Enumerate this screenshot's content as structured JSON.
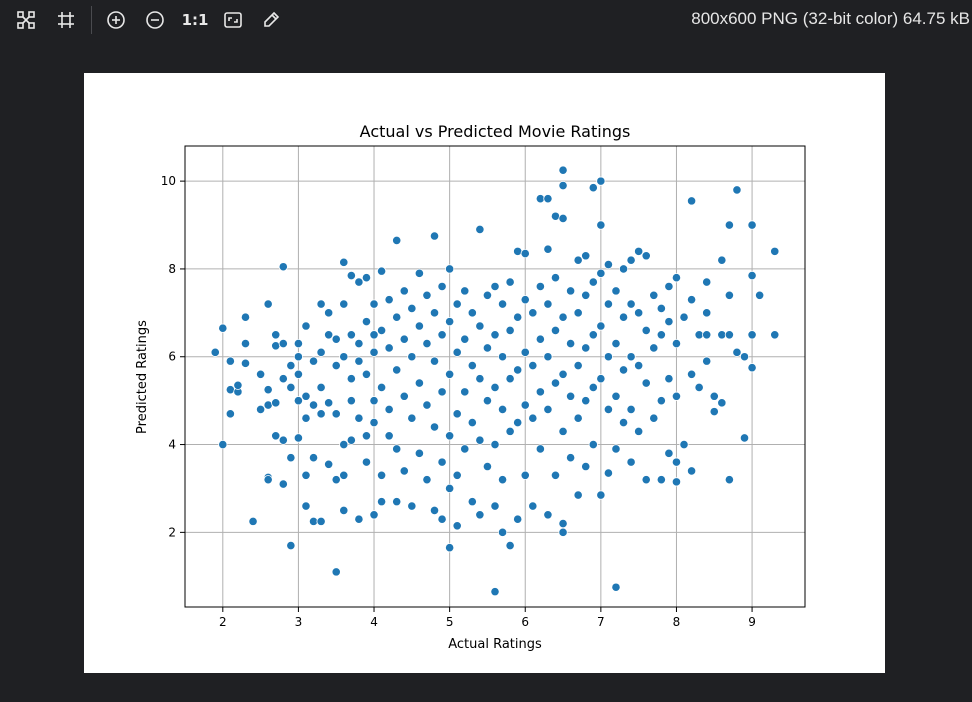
{
  "toolbar": {
    "tools": [
      {
        "name": "fit-icon"
      },
      {
        "name": "crop-grid-icon"
      },
      {
        "name": "zoom-in-icon"
      },
      {
        "name": "zoom-out-icon"
      },
      {
        "name": "actual-size",
        "label": "1:1"
      },
      {
        "name": "fit-window-icon"
      },
      {
        "name": "color-picker-icon"
      }
    ],
    "file_info": "800x600 PNG (32-bit color) 64.75 kB"
  },
  "colors": {
    "background": "#1f2023",
    "point": "#1f77b4",
    "grid": "#b0b0b0"
  },
  "chart_data": {
    "type": "scatter",
    "title": "Actual vs Predicted Movie Ratings",
    "xlabel": "Actual Ratings",
    "ylabel": "Predicted Ratings",
    "xlim": [
      1.5,
      9.7
    ],
    "ylim": [
      0.3,
      10.8
    ],
    "xticks": [
      2,
      3,
      4,
      5,
      6,
      7,
      8,
      9
    ],
    "yticks": [
      2,
      4,
      6,
      8,
      10
    ],
    "grid": true,
    "series": [
      {
        "name": "",
        "points": [
          [
            1.9,
            6.1
          ],
          [
            2.0,
            6.65
          ],
          [
            2.0,
            4.0
          ],
          [
            2.1,
            4.7
          ],
          [
            2.1,
            5.9
          ],
          [
            2.1,
            5.25
          ],
          [
            2.2,
            5.2
          ],
          [
            2.2,
            5.35
          ],
          [
            2.3,
            6.3
          ],
          [
            2.3,
            6.9
          ],
          [
            2.3,
            5.85
          ],
          [
            2.4,
            2.25
          ],
          [
            2.5,
            5.6
          ],
          [
            2.5,
            4.8
          ],
          [
            2.6,
            4.9
          ],
          [
            2.6,
            3.25
          ],
          [
            2.6,
            3.2
          ],
          [
            2.6,
            5.25
          ],
          [
            2.6,
            7.2
          ],
          [
            2.7,
            6.5
          ],
          [
            2.7,
            4.95
          ],
          [
            2.7,
            4.2
          ],
          [
            2.7,
            6.25
          ],
          [
            2.8,
            8.05
          ],
          [
            2.8,
            6.3
          ],
          [
            2.8,
            5.5
          ],
          [
            2.8,
            3.1
          ],
          [
            2.8,
            4.1
          ],
          [
            2.9,
            5.8
          ],
          [
            2.9,
            5.3
          ],
          [
            2.9,
            1.7
          ],
          [
            2.9,
            3.7
          ],
          [
            3.0,
            6.0
          ],
          [
            3.0,
            4.15
          ],
          [
            3.0,
            5.0
          ],
          [
            3.0,
            6.3
          ],
          [
            3.0,
            5.6
          ],
          [
            3.1,
            6.7
          ],
          [
            3.1,
            5.1
          ],
          [
            3.1,
            2.6
          ],
          [
            3.1,
            3.3
          ],
          [
            3.1,
            4.6
          ],
          [
            3.2,
            2.25
          ],
          [
            3.2,
            5.9
          ],
          [
            3.2,
            4.9
          ],
          [
            3.2,
            3.7
          ],
          [
            3.3,
            7.2
          ],
          [
            3.3,
            6.1
          ],
          [
            3.3,
            4.7
          ],
          [
            3.3,
            2.25
          ],
          [
            3.3,
            5.3
          ],
          [
            3.4,
            6.5
          ],
          [
            3.4,
            3.55
          ],
          [
            3.4,
            7.0
          ],
          [
            3.4,
            4.95
          ],
          [
            3.5,
            1.1
          ],
          [
            3.5,
            6.4
          ],
          [
            3.5,
            4.7
          ],
          [
            3.5,
            3.2
          ],
          [
            3.5,
            5.8
          ],
          [
            3.6,
            8.15
          ],
          [
            3.6,
            7.2
          ],
          [
            3.6,
            6.0
          ],
          [
            3.6,
            4.0
          ],
          [
            3.6,
            3.3
          ],
          [
            3.6,
            2.5
          ],
          [
            3.7,
            7.85
          ],
          [
            3.7,
            6.5
          ],
          [
            3.7,
            5.0
          ],
          [
            3.7,
            4.1
          ],
          [
            3.7,
            5.5
          ],
          [
            3.8,
            7.7
          ],
          [
            3.8,
            6.3
          ],
          [
            3.8,
            2.3
          ],
          [
            3.8,
            4.6
          ],
          [
            3.8,
            5.9
          ],
          [
            3.9,
            7.8
          ],
          [
            3.9,
            6.8
          ],
          [
            3.9,
            5.6
          ],
          [
            3.9,
            4.2
          ],
          [
            3.9,
            3.6
          ],
          [
            4.0,
            7.2
          ],
          [
            4.0,
            6.1
          ],
          [
            4.0,
            4.5
          ],
          [
            4.0,
            2.4
          ],
          [
            4.0,
            5.0
          ],
          [
            4.0,
            6.5
          ],
          [
            4.1,
            7.95
          ],
          [
            4.1,
            6.6
          ],
          [
            4.1,
            5.3
          ],
          [
            4.1,
            3.3
          ],
          [
            4.1,
            2.7
          ],
          [
            4.2,
            7.3
          ],
          [
            4.2,
            6.2
          ],
          [
            4.2,
            4.8
          ],
          [
            4.2,
            4.2
          ],
          [
            4.3,
            8.65
          ],
          [
            4.3,
            6.9
          ],
          [
            4.3,
            5.7
          ],
          [
            4.3,
            3.9
          ],
          [
            4.3,
            2.7
          ],
          [
            4.4,
            7.5
          ],
          [
            4.4,
            6.4
          ],
          [
            4.4,
            5.1
          ],
          [
            4.4,
            3.4
          ],
          [
            4.5,
            7.1
          ],
          [
            4.5,
            6.0
          ],
          [
            4.5,
            4.6
          ],
          [
            4.5,
            2.6
          ],
          [
            4.6,
            7.9
          ],
          [
            4.6,
            6.7
          ],
          [
            4.6,
            5.4
          ],
          [
            4.6,
            3.8
          ],
          [
            4.7,
            7.4
          ],
          [
            4.7,
            6.3
          ],
          [
            4.7,
            4.9
          ],
          [
            4.7,
            3.2
          ],
          [
            4.8,
            8.75
          ],
          [
            4.8,
            7.0
          ],
          [
            4.8,
            5.9
          ],
          [
            4.8,
            4.4
          ],
          [
            4.8,
            2.5
          ],
          [
            4.9,
            7.6
          ],
          [
            4.9,
            6.5
          ],
          [
            4.9,
            5.2
          ],
          [
            4.9,
            3.6
          ],
          [
            4.9,
            2.3
          ],
          [
            5.0,
            8.0
          ],
          [
            5.0,
            6.8
          ],
          [
            5.0,
            5.6
          ],
          [
            5.0,
            4.2
          ],
          [
            5.0,
            1.65
          ],
          [
            5.0,
            3.0
          ],
          [
            5.1,
            7.2
          ],
          [
            5.1,
            6.1
          ],
          [
            5.1,
            4.7
          ],
          [
            5.1,
            3.3
          ],
          [
            5.1,
            2.15
          ],
          [
            5.2,
            7.5
          ],
          [
            5.2,
            6.4
          ],
          [
            5.2,
            5.2
          ],
          [
            5.2,
            3.9
          ],
          [
            5.3,
            7.0
          ],
          [
            5.3,
            5.8
          ],
          [
            5.3,
            4.5
          ],
          [
            5.3,
            2.7
          ],
          [
            5.4,
            8.9
          ],
          [
            5.4,
            6.7
          ],
          [
            5.4,
            5.5
          ],
          [
            5.4,
            4.1
          ],
          [
            5.4,
            2.4
          ],
          [
            5.5,
            7.4
          ],
          [
            5.5,
            6.2
          ],
          [
            5.5,
            5.0
          ],
          [
            5.5,
            3.5
          ],
          [
            5.6,
            0.65
          ],
          [
            5.6,
            7.6
          ],
          [
            5.6,
            6.5
          ],
          [
            5.6,
            5.3
          ],
          [
            5.6,
            4.0
          ],
          [
            5.6,
            2.6
          ],
          [
            5.7,
            7.2
          ],
          [
            5.7,
            6.0
          ],
          [
            5.7,
            4.8
          ],
          [
            5.7,
            3.2
          ],
          [
            5.7,
            2.0
          ],
          [
            5.8,
            7.7
          ],
          [
            5.8,
            6.6
          ],
          [
            5.8,
            5.5
          ],
          [
            5.8,
            4.3
          ],
          [
            5.8,
            1.7
          ],
          [
            5.9,
            8.4
          ],
          [
            5.9,
            6.9
          ],
          [
            5.9,
            5.7
          ],
          [
            5.9,
            4.5
          ],
          [
            5.9,
            2.3
          ],
          [
            6.0,
            8.35
          ],
          [
            6.0,
            7.3
          ],
          [
            6.0,
            6.1
          ],
          [
            6.0,
            4.9
          ],
          [
            6.0,
            3.3
          ],
          [
            6.1,
            7.0
          ],
          [
            6.1,
            5.8
          ],
          [
            6.1,
            4.6
          ],
          [
            6.1,
            2.6
          ],
          [
            6.2,
            9.6
          ],
          [
            6.2,
            7.6
          ],
          [
            6.2,
            6.4
          ],
          [
            6.2,
            5.2
          ],
          [
            6.2,
            3.9
          ],
          [
            6.3,
            9.6
          ],
          [
            6.3,
            8.45
          ],
          [
            6.3,
            7.2
          ],
          [
            6.3,
            6.0
          ],
          [
            6.3,
            4.8
          ],
          [
            6.3,
            2.4
          ],
          [
            6.4,
            9.2
          ],
          [
            6.4,
            7.8
          ],
          [
            6.4,
            6.6
          ],
          [
            6.4,
            5.4
          ],
          [
            6.4,
            3.3
          ],
          [
            6.5,
            10.25
          ],
          [
            6.5,
            9.9
          ],
          [
            6.5,
            9.15
          ],
          [
            6.5,
            6.9
          ],
          [
            6.5,
            5.6
          ],
          [
            6.5,
            4.3
          ],
          [
            6.5,
            2.2
          ],
          [
            6.5,
            2.0
          ],
          [
            6.6,
            7.5
          ],
          [
            6.6,
            6.3
          ],
          [
            6.6,
            5.1
          ],
          [
            6.6,
            3.7
          ],
          [
            6.7,
            8.2
          ],
          [
            6.7,
            7.0
          ],
          [
            6.7,
            5.8
          ],
          [
            6.7,
            4.6
          ],
          [
            6.7,
            2.85
          ],
          [
            6.8,
            8.3
          ],
          [
            6.8,
            7.4
          ],
          [
            6.8,
            6.2
          ],
          [
            6.8,
            5.0
          ],
          [
            6.8,
            3.5
          ],
          [
            6.9,
            9.85
          ],
          [
            6.9,
            7.7
          ],
          [
            6.9,
            6.5
          ],
          [
            6.9,
            5.3
          ],
          [
            6.9,
            4.0
          ],
          [
            7.0,
            10.0
          ],
          [
            7.0,
            9.0
          ],
          [
            7.0,
            7.9
          ],
          [
            7.0,
            6.7
          ],
          [
            7.0,
            5.5
          ],
          [
            7.0,
            2.85
          ],
          [
            7.1,
            8.1
          ],
          [
            7.1,
            7.2
          ],
          [
            7.1,
            6.0
          ],
          [
            7.1,
            4.8
          ],
          [
            7.1,
            3.35
          ],
          [
            7.2,
            0.75
          ],
          [
            7.2,
            7.5
          ],
          [
            7.2,
            6.3
          ],
          [
            7.2,
            5.1
          ],
          [
            7.2,
            3.9
          ],
          [
            7.3,
            8.0
          ],
          [
            7.3,
            6.9
          ],
          [
            7.3,
            5.7
          ],
          [
            7.3,
            4.5
          ],
          [
            7.4,
            8.2
          ],
          [
            7.4,
            7.2
          ],
          [
            7.4,
            6.0
          ],
          [
            7.4,
            4.8
          ],
          [
            7.4,
            3.6
          ],
          [
            7.5,
            8.4
          ],
          [
            7.5,
            7.0
          ],
          [
            7.5,
            5.8
          ],
          [
            7.5,
            4.3
          ],
          [
            7.6,
            8.3
          ],
          [
            7.6,
            6.6
          ],
          [
            7.6,
            5.4
          ],
          [
            7.6,
            3.2
          ],
          [
            7.7,
            7.4
          ],
          [
            7.7,
            6.2
          ],
          [
            7.7,
            4.6
          ],
          [
            7.8,
            7.1
          ],
          [
            7.8,
            6.5
          ],
          [
            7.8,
            5.0
          ],
          [
            7.8,
            3.2
          ],
          [
            7.9,
            7.6
          ],
          [
            7.9,
            6.8
          ],
          [
            7.9,
            5.5
          ],
          [
            7.9,
            3.8
          ],
          [
            8.0,
            7.8
          ],
          [
            8.0,
            6.3
          ],
          [
            8.0,
            5.1
          ],
          [
            8.0,
            3.6
          ],
          [
            8.0,
            3.15
          ],
          [
            8.1,
            6.9
          ],
          [
            8.1,
            4.0
          ],
          [
            8.2,
            9.55
          ],
          [
            8.2,
            7.3
          ],
          [
            8.2,
            5.6
          ],
          [
            8.2,
            3.4
          ],
          [
            8.3,
            6.5
          ],
          [
            8.3,
            5.3
          ],
          [
            8.4,
            7.7
          ],
          [
            8.4,
            6.5
          ],
          [
            8.4,
            7.0
          ],
          [
            8.4,
            5.9
          ],
          [
            8.5,
            5.1
          ],
          [
            8.5,
            4.75
          ],
          [
            8.6,
            8.2
          ],
          [
            8.6,
            4.95
          ],
          [
            8.6,
            6.5
          ],
          [
            8.7,
            9.0
          ],
          [
            8.7,
            7.4
          ],
          [
            8.7,
            3.2
          ],
          [
            8.7,
            6.5
          ],
          [
            8.8,
            9.8
          ],
          [
            8.8,
            6.1
          ],
          [
            8.9,
            6.0
          ],
          [
            8.9,
            4.15
          ],
          [
            9.0,
            9.0
          ],
          [
            9.0,
            7.85
          ],
          [
            9.0,
            6.5
          ],
          [
            9.0,
            5.75
          ],
          [
            9.1,
            7.4
          ],
          [
            9.3,
            8.4
          ],
          [
            9.3,
            6.5
          ]
        ]
      }
    ]
  }
}
